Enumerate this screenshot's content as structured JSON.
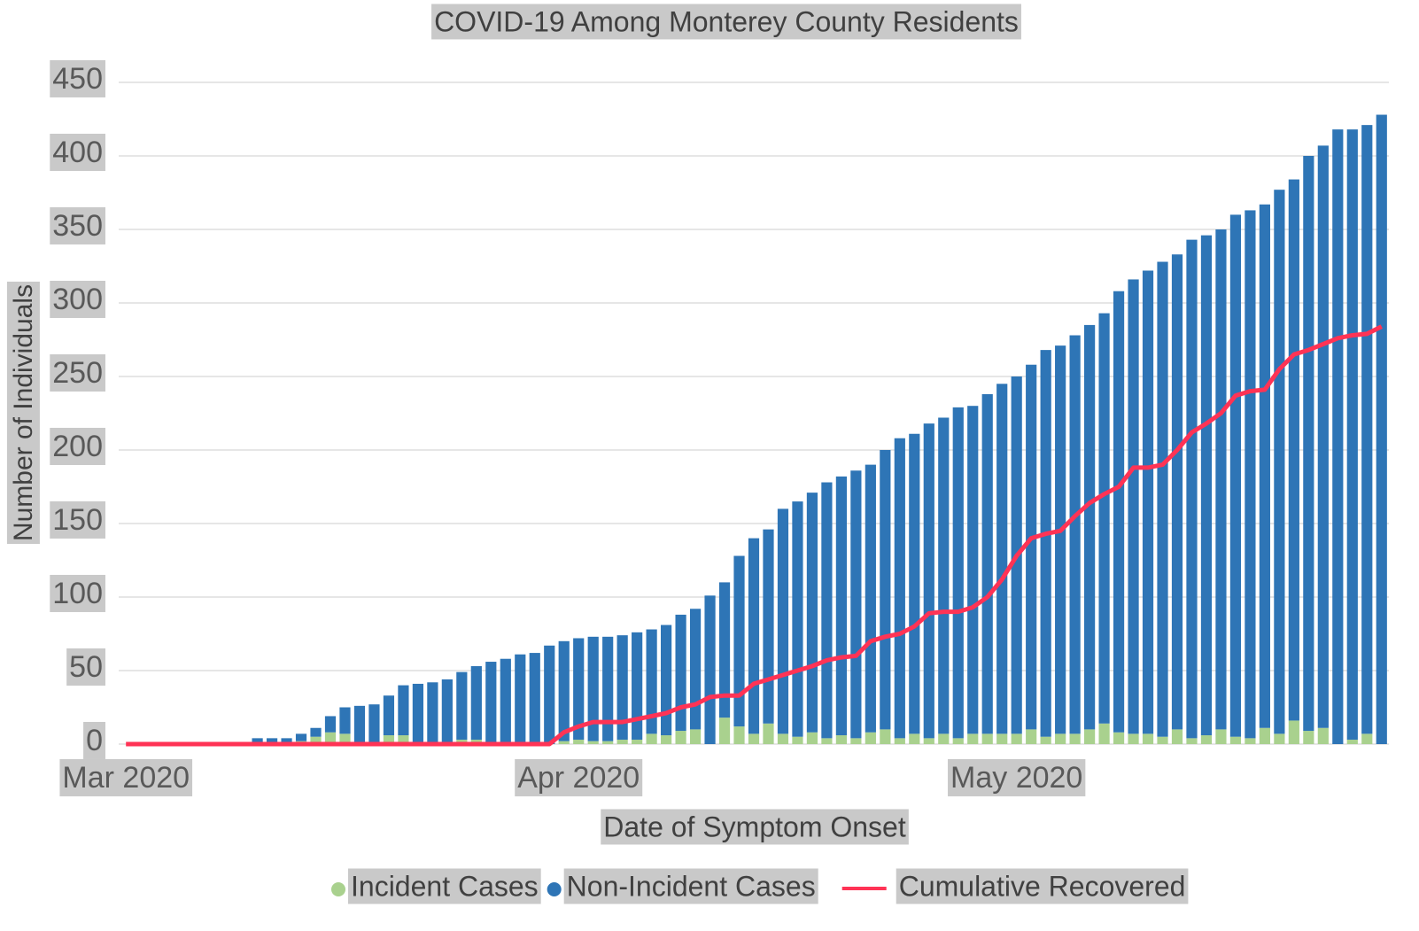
{
  "chart_data": {
    "type": "stacked-bar-line",
    "title": "COVID-19 Among Monterey County Residents",
    "x_label": "Date of Symptom Onset",
    "y_label": "Number of Individuals",
    "categories": [
      "Mar 2020",
      null,
      null,
      null,
      null,
      null,
      null,
      null,
      null,
      null,
      null,
      null,
      null,
      null,
      null,
      null,
      null,
      null,
      null,
      null,
      null,
      null,
      null,
      null,
      null,
      null,
      null,
      null,
      null,
      null,
      null,
      "Apr 2020",
      null,
      null,
      null,
      null,
      null,
      null,
      null,
      null,
      null,
      null,
      null,
      null,
      null,
      null,
      null,
      null,
      null,
      null,
      null,
      null,
      null,
      null,
      null,
      null,
      null,
      null,
      null,
      null,
      null,
      "May 2020",
      null,
      null,
      null,
      null,
      null,
      null,
      null,
      null,
      null,
      null,
      null,
      null,
      null,
      null,
      null,
      null,
      null,
      null,
      null,
      null,
      null,
      null,
      null,
      null,
      null
    ],
    "series": [
      {
        "name": "Incident Cases",
        "color": "#a9d18e",
        "kind": "bar",
        "values": [
          0,
          0,
          0,
          0,
          0,
          0,
          0,
          0,
          0,
          0,
          0,
          0,
          2,
          5,
          8,
          7,
          0,
          0,
          6,
          6,
          0,
          0,
          0,
          3,
          3,
          0,
          0,
          0,
          0,
          0,
          2,
          3,
          2,
          2,
          3,
          3,
          7,
          6,
          9,
          10,
          0,
          18,
          12,
          7,
          14,
          7,
          5,
          8,
          4,
          6,
          4,
          8,
          10,
          4,
          7,
          4,
          7,
          4,
          7,
          7,
          7,
          7,
          10,
          5,
          7,
          7,
          10,
          14,
          8,
          7,
          7,
          5,
          10,
          4,
          6,
          10,
          5,
          4,
          11,
          7,
          16,
          9,
          11,
          0,
          3,
          7,
          0
        ]
      },
      {
        "name": "Non-Incident Cases",
        "color": "#2e75b6",
        "kind": "bar",
        "values": [
          0,
          0,
          0,
          0,
          0,
          0,
          0,
          0,
          0,
          4,
          4,
          4,
          5,
          6,
          11,
          18,
          26,
          27,
          27,
          34,
          41,
          42,
          44,
          46,
          50,
          56,
          58,
          61,
          62,
          67,
          68,
          69,
          71,
          71,
          71,
          73,
          71,
          75,
          79,
          82,
          101,
          92,
          116,
          133,
          132,
          153,
          160,
          163,
          174,
          176,
          182,
          182,
          190,
          204,
          204,
          214,
          215,
          225,
          223,
          231,
          238,
          243,
          248,
          263,
          264,
          271,
          275,
          279,
          300,
          309,
          315,
          323,
          323,
          339,
          340,
          340,
          355,
          359,
          356,
          370,
          368,
          391,
          396,
          418,
          415,
          414,
          428
        ]
      },
      {
        "name": "Cumulative Recovered",
        "color": "#ff3355",
        "kind": "line",
        "values": [
          0,
          0,
          0,
          0,
          0,
          0,
          0,
          0,
          0,
          0,
          0,
          0,
          0,
          0,
          0,
          0,
          0,
          0,
          0,
          0,
          0,
          0,
          0,
          0,
          0,
          0,
          0,
          0,
          0,
          0,
          8,
          12,
          15,
          15,
          15,
          17,
          19,
          21,
          25,
          27,
          32,
          33,
          33,
          41,
          44,
          47,
          50,
          53,
          57,
          59,
          60,
          70,
          73,
          75,
          80,
          89,
          90,
          90,
          93,
          100,
          112,
          128,
          140,
          143,
          145,
          155,
          164,
          170,
          175,
          188,
          188,
          190,
          200,
          212,
          218,
          225,
          237,
          240,
          241,
          255,
          265,
          268,
          272,
          276,
          278,
          279,
          284
        ]
      }
    ],
    "ylim": [
      0,
      450
    ],
    "yticks": [
      0,
      50,
      100,
      150,
      200,
      250,
      300,
      350,
      400,
      450
    ],
    "grid": true,
    "legend": "bottom"
  }
}
